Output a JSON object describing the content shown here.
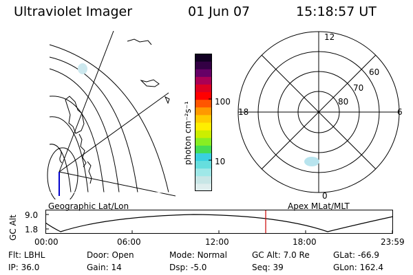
{
  "header": {
    "instrument": "Ultraviolet Imager",
    "date": "01 Jun 07",
    "time": "15:18:57 UT"
  },
  "left_panel": {
    "label": "Geographic Lat/Lon"
  },
  "right_panel": {
    "label": "Apex MLat/MLT",
    "mlt_labels": {
      "top": "12",
      "left": "18",
      "right": "6",
      "bottom": "0"
    },
    "lat_labels": [
      "60",
      "70",
      "80"
    ]
  },
  "colorbar": {
    "unit_label": "photon cm⁻²s⁻¹",
    "ticks": [
      "100",
      "10"
    ],
    "colors": [
      "#dfeeee",
      "#c8e6e6",
      "#9fe8e8",
      "#66dede",
      "#3ad0e0",
      "#44dd55",
      "#88ee22",
      "#ccee00",
      "#ffee00",
      "#ffcc00",
      "#ff9900",
      "#ff5500",
      "#ff0000",
      "#dd0022",
      "#aa0055",
      "#660066",
      "#330044",
      "#110022"
    ]
  },
  "altitude_plot": {
    "ylabel": "GC Alt",
    "y_ticks": [
      "9.0",
      "1.8"
    ],
    "x_ticks": [
      "00:00",
      "06:00",
      "12:00",
      "18:00",
      "23:59"
    ],
    "marker_color": "#cc0000"
  },
  "status": {
    "row1": [
      {
        "label": "Flt:",
        "value": "LBHL"
      },
      {
        "label": "Door:",
        "value": "Open"
      },
      {
        "label": "Mode:",
        "value": "Normal"
      },
      {
        "label": "GC Alt:",
        "value": "7.0 Re"
      },
      {
        "label": "GLat:",
        "value": "-66.9"
      }
    ],
    "row2": [
      {
        "label": "IP:",
        "value": "36.0"
      },
      {
        "label": "Gain:",
        "value": "14"
      },
      {
        "label": "Dsp:",
        "value": "-5.0"
      },
      {
        "label": "Seq:",
        "value": "39"
      },
      {
        "label": "GLon:",
        "value": "162.4"
      }
    ]
  }
}
